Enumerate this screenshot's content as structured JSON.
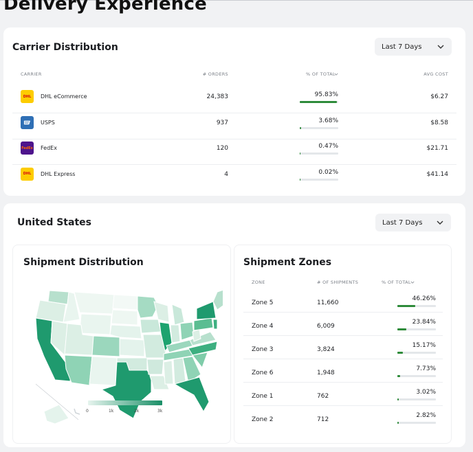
{
  "page": {
    "title": "Delivery Experience"
  },
  "carrier_section": {
    "title": "Carrier Distribution",
    "dropdown": "Last 7 Days",
    "columns": {
      "carrier": "CARRIER",
      "orders": "# ORDERS",
      "pct": "% OF TOTAL",
      "cost": "AVG COST"
    },
    "rows": [
      {
        "name": "DHL eCommerce",
        "orders": "24,383",
        "pct": "95.83%",
        "fraction": 0.9583,
        "cost": "$6.27",
        "logo": "dhl-logo-icon",
        "logo_text": "DHL",
        "logo_bg": "#fdcc00",
        "logo_fg": "#d40511"
      },
      {
        "name": "USPS",
        "orders": "937",
        "pct": "3.68%",
        "fraction": 0.0368,
        "cost": "$8.58",
        "logo": "usps-logo-icon",
        "logo_text": "",
        "logo_bg": "#2f6fb5",
        "logo_fg": "#ffffff"
      },
      {
        "name": "FedEx",
        "orders": "120",
        "pct": "0.47%",
        "fraction": 0.0047,
        "cost": "$21.71",
        "logo": "fedex-logo-icon",
        "logo_text": "FedEx",
        "logo_bg": "#4d148c",
        "logo_fg": "#ff6600"
      },
      {
        "name": "DHL Express",
        "orders": "4",
        "pct": "0.02%",
        "fraction": 0.0002,
        "cost": "$41.14",
        "logo": "dhl-logo-icon",
        "logo_text": "DHL",
        "logo_bg": "#fdcc00",
        "logo_fg": "#d40511"
      }
    ]
  },
  "us_section": {
    "title": "United States",
    "dropdown": "Last 7 Days",
    "distribution": {
      "title": "Shipment Distribution",
      "legend": [
        "0",
        "1k",
        "2k",
        "3k"
      ]
    },
    "zones": {
      "title": "Shipment Zones",
      "columns": {
        "zone": "ZONE",
        "shipments": "# OF SHIPMENTS",
        "pct": "% OF TOTAL"
      },
      "rows": [
        {
          "zone": "Zone 5",
          "shipments": "11,660",
          "pct": "46.26%",
          "fraction": 0.4626
        },
        {
          "zone": "Zone 4",
          "shipments": "6,009",
          "pct": "23.84%",
          "fraction": 0.2384
        },
        {
          "zone": "Zone 3",
          "shipments": "3,824",
          "pct": "15.17%",
          "fraction": 0.1517
        },
        {
          "zone": "Zone 6",
          "shipments": "1,948",
          "pct": "7.73%",
          "fraction": 0.0773
        },
        {
          "zone": "Zone 1",
          "shipments": "762",
          "pct": "3.02%",
          "fraction": 0.0302
        },
        {
          "zone": "Zone 2",
          "shipments": "712",
          "pct": "2.82%",
          "fraction": 0.0282
        }
      ]
    }
  },
  "colors": {
    "accent_bar": "#2e8b3a",
    "map_dark": "#1a8f67",
    "map_light": "#e6f4ee"
  }
}
